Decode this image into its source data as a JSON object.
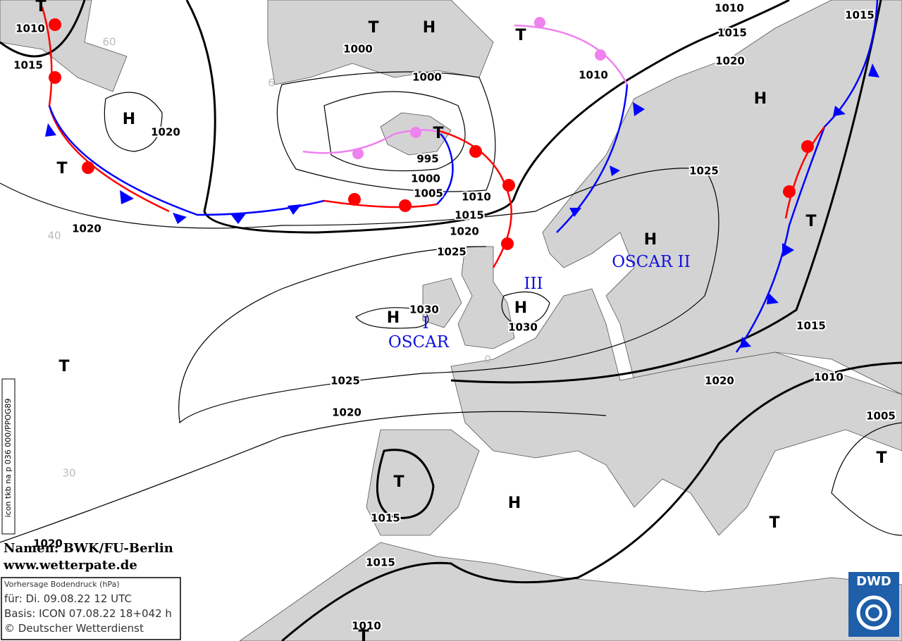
{
  "pressure_labels": [
    "1010",
    "1015",
    "1020",
    "1000",
    "1000",
    "995",
    "1000",
    "1005",
    "1010",
    "1015",
    "1020",
    "1025",
    "1030",
    "1030",
    "1010",
    "1010",
    "1015",
    "1020",
    "1015",
    "1025",
    "1020",
    "1025",
    "1020",
    "1015",
    "1015",
    "1020",
    "1010",
    "1005",
    "1020",
    "1015",
    "1010"
  ],
  "centers": [
    "T",
    "T",
    "H",
    "T",
    "H",
    "T",
    "T",
    "H",
    "T",
    "H",
    "H",
    "H",
    "T",
    "T",
    "H",
    "T",
    "T",
    "T"
  ],
  "names": [
    "III",
    "OSCAR II",
    "I",
    "OSCAR"
  ],
  "grid_labels": [
    "60",
    "6",
    "40",
    "30",
    "0"
  ],
  "credits": {
    "names": "Namen: BWK/FU-Berlin",
    "website": "www.wetterpate.de"
  },
  "info_box": {
    "title": "Vorhersage Bodendruck (hPa)",
    "valid": "für:  Di. 09.08.22  12 UTC",
    "basis": "Basis: ICON  07.08.22 18+042 h",
    "copyright": "© Deutscher Wetterdienst"
  },
  "side_text": "icon tkb na p 036 000/PPOG89",
  "logo": "DWD"
}
